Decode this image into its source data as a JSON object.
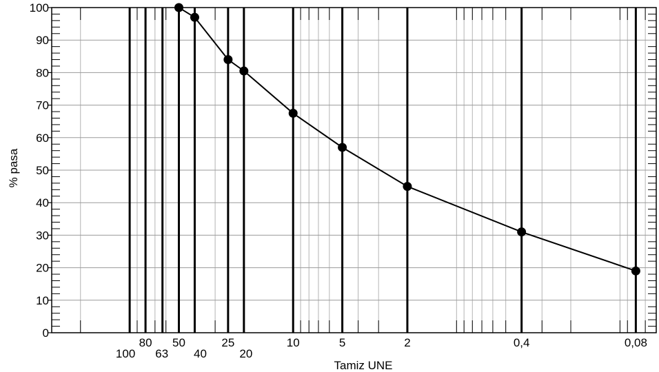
{
  "chart_data": {
    "type": "line",
    "title": "",
    "xlabel": "Tamiz UNE",
    "ylabel": "% pasa",
    "x_scale": "log-reversed",
    "xlim": [
      300,
      0.06
    ],
    "ylim": [
      0,
      100
    ],
    "y_ticks": [
      "0",
      "10",
      "20",
      "30",
      "40",
      "50",
      "60",
      "70",
      "80",
      "90",
      "100"
    ],
    "sieves": [
      {
        "value": 100,
        "label": "100"
      },
      {
        "value": 80,
        "label": "80"
      },
      {
        "value": 63,
        "label": "63"
      },
      {
        "value": 50,
        "label": "50"
      },
      {
        "value": 40,
        "label": "40"
      },
      {
        "value": 25,
        "label": "25"
      },
      {
        "value": 20,
        "label": "20"
      },
      {
        "value": 10,
        "label": "10"
      },
      {
        "value": 5,
        "label": "5"
      },
      {
        "value": 2,
        "label": "2"
      },
      {
        "value": 0.4,
        "label": "0,4"
      },
      {
        "value": 0.08,
        "label": "0,08"
      }
    ],
    "series": [
      {
        "x": [
          50,
          40,
          25,
          20,
          10,
          5,
          2,
          0.4,
          0.08
        ],
        "y": [
          100,
          97,
          84,
          80.5,
          67.5,
          57,
          45,
          31,
          19
        ]
      }
    ],
    "grid": true,
    "legend": "none"
  }
}
